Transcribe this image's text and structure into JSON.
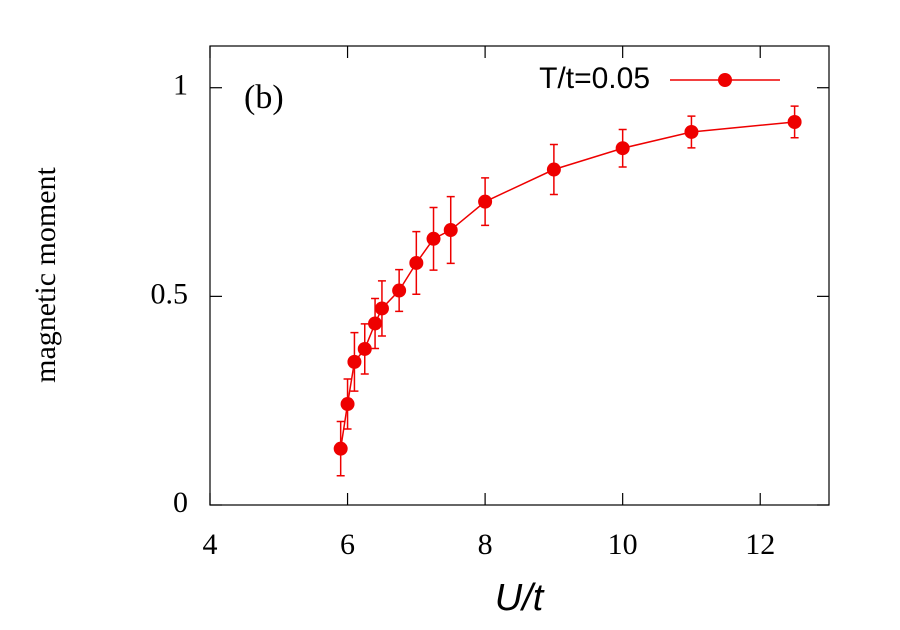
{
  "chart_data": {
    "type": "line",
    "annotation": "(b)",
    "x_label": "U/t",
    "y_label": "magnetic moment",
    "xlim": [
      4,
      13
    ],
    "ylim": [
      0,
      1.1
    ],
    "xticks": [
      4,
      6,
      8,
      10,
      12
    ],
    "yticks": [
      0,
      0.5,
      1
    ],
    "legend": "upper right",
    "series": [
      {
        "name": "T/t=0.05",
        "color": "#ee0000",
        "x": [
          5.9,
          6.0,
          6.1,
          6.25,
          6.4,
          6.5,
          6.75,
          7.0,
          7.25,
          7.5,
          8,
          9,
          10,
          11,
          12.5
        ],
        "values": [
          0.135,
          0.242,
          0.343,
          0.374,
          0.435,
          0.471,
          0.514,
          0.58,
          0.638,
          0.659,
          0.727,
          0.804,
          0.855,
          0.894,
          0.918
        ],
        "errors": [
          0.065,
          0.06,
          0.07,
          0.06,
          0.06,
          0.066,
          0.05,
          0.075,
          0.075,
          0.08,
          0.057,
          0.06,
          0.045,
          0.038,
          0.038
        ]
      }
    ]
  }
}
